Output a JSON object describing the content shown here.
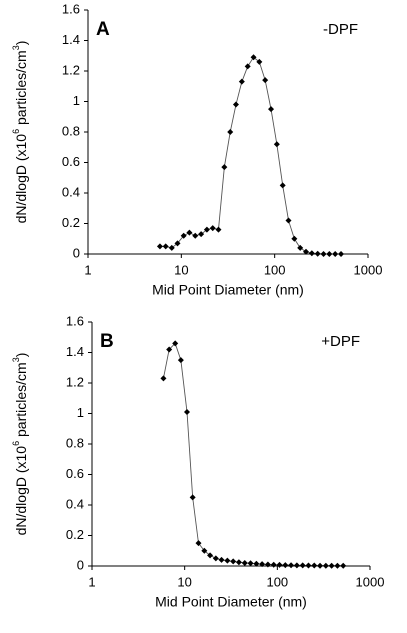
{
  "chart_data": [
    {
      "type": "line",
      "panel_label": "A",
      "annotation": "-DPF",
      "xlabel": "Mid Point Diameter (nm)",
      "ylabel": [
        "dN/dlogD (x10",
        "6",
        " particles/cm",
        "3",
        ")"
      ],
      "log_x": true,
      "color": "#000000",
      "x": [
        5.9,
        6.8,
        7.9,
        9.1,
        10.6,
        12.2,
        14.1,
        16.3,
        18.8,
        21.7,
        25.0,
        28.9,
        33.4,
        38.5,
        44.5,
        51.4,
        59.4,
        68.5,
        79.1,
        91.4,
        105.5,
        121.9,
        140.7,
        162.5,
        187.7,
        216.7,
        250.3,
        289.0,
        333.8,
        385.4,
        445.1,
        514.0
      ],
      "values": [
        0.05,
        0.05,
        0.04,
        0.07,
        0.12,
        0.14,
        0.12,
        0.13,
        0.16,
        0.17,
        0.16,
        0.57,
        0.8,
        0.98,
        1.13,
        1.23,
        1.29,
        1.26,
        1.14,
        0.95,
        0.72,
        0.45,
        0.22,
        0.1,
        0.04,
        0.015,
        0.005,
        0.002,
        0,
        0,
        0,
        0
      ],
      "xlim": [
        1,
        1000
      ],
      "xticks": [
        1,
        10,
        100,
        1000
      ],
      "ylim": [
        0,
        1.6
      ],
      "yticks": [
        0,
        0.2,
        0.4,
        0.6,
        0.8,
        1,
        1.2,
        1.4,
        1.6
      ]
    },
    {
      "type": "line",
      "panel_label": "B",
      "annotation": "+DPF",
      "xlabel": "Mid Point Diameter (nm)",
      "ylabel": [
        "dN/dlogD (x10",
        "6",
        " particles/cm",
        "3",
        ")"
      ],
      "log_x": true,
      "color": "#000000",
      "x": [
        5.9,
        6.8,
        7.9,
        9.1,
        10.6,
        12.2,
        14.1,
        16.3,
        18.8,
        21.7,
        25.0,
        28.9,
        33.4,
        38.5,
        44.5,
        51.4,
        59.4,
        68.5,
        79.1,
        91.4,
        105.5,
        121.9,
        140.7,
        162.5,
        187.7,
        216.7,
        250.3,
        289.0,
        333.8,
        385.4,
        445.1,
        514.0
      ],
      "values": [
        1.23,
        1.42,
        1.46,
        1.35,
        1.01,
        0.45,
        0.15,
        0.1,
        0.07,
        0.05,
        0.04,
        0.035,
        0.03,
        0.025,
        0.02,
        0.018,
        0.015,
        0.012,
        0.01,
        0.008,
        0.007,
        0.006,
        0.005,
        0.004,
        0.004,
        0.003,
        0.003,
        0.002,
        0.002,
        0.002,
        0.002,
        0.002
      ],
      "xlim": [
        1,
        1000
      ],
      "xticks": [
        1,
        10,
        100,
        1000
      ],
      "ylim": [
        0,
        1.6
      ],
      "yticks": [
        0,
        0.2,
        0.4,
        0.6,
        0.8,
        1,
        1.2,
        1.4,
        1.6
      ]
    }
  ]
}
